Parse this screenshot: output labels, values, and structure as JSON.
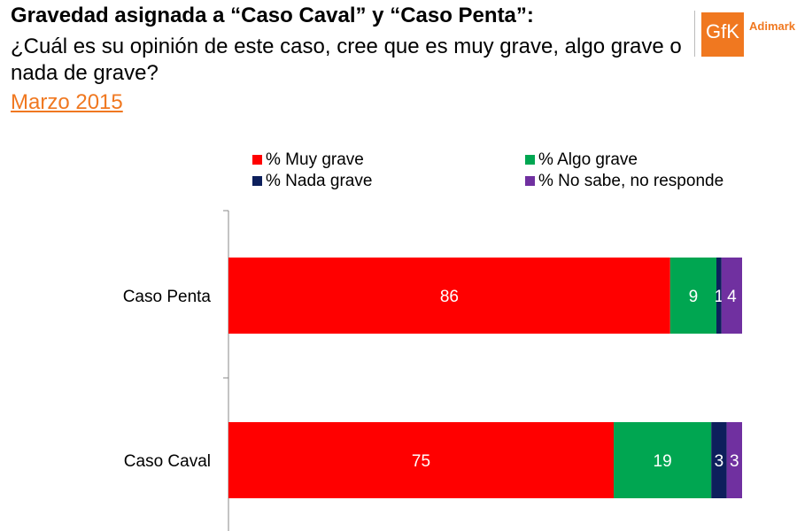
{
  "header": {
    "title": "Gravedad asignada a “Caso Caval” y “Caso Penta”:",
    "subtitle": "¿Cuál es su opinión de este caso, cree que es muy grave, algo grave o nada de grave?",
    "date": "Marzo 2015"
  },
  "logo": {
    "mark": "GfK",
    "text": "Adimark"
  },
  "colors": {
    "muy_grave": "#ff0000",
    "algo_grave": "#00a651",
    "nada_grave": "#0d1f5c",
    "no_sabe": "#7030a0",
    "date": "#f07820"
  },
  "legend": [
    {
      "label": "% Muy grave",
      "color": "#ff0000"
    },
    {
      "label": "% Algo grave",
      "color": "#00a651"
    },
    {
      "label": "% Nada grave",
      "color": "#0d1f5c"
    },
    {
      "label": "% No sabe, no responde",
      "color": "#7030a0"
    }
  ],
  "chart_data": {
    "type": "bar",
    "orientation": "horizontal",
    "stacked": true,
    "categories": [
      "Caso Penta",
      "Caso Caval"
    ],
    "series": [
      {
        "name": "% Muy grave",
        "color": "#ff0000",
        "values": [
          86,
          75
        ]
      },
      {
        "name": "% Algo grave",
        "color": "#00a651",
        "values": [
          9,
          19
        ]
      },
      {
        "name": "% Nada grave",
        "color": "#0d1f5c",
        "values": [
          1,
          3
        ]
      },
      {
        "name": "% No sabe, no responde",
        "color": "#7030a0",
        "values": [
          4,
          3
        ]
      }
    ],
    "xlim": [
      0,
      100
    ],
    "legend_position": "top",
    "grid": false
  }
}
